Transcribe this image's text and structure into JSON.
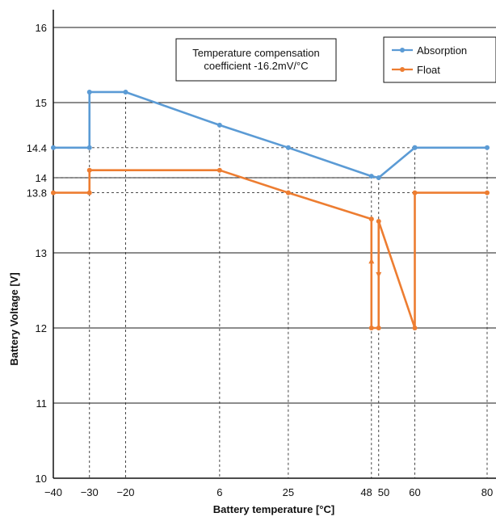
{
  "chart_data": {
    "type": "line",
    "xlabel": "Battery temperature [°C]",
    "ylabel": "Battery Voltage [V]",
    "xlim": [
      -40,
      80
    ],
    "ylim": [
      10,
      16
    ],
    "x_ticks": [
      -40,
      -30,
      -20,
      6,
      25,
      48,
      50,
      60,
      80
    ],
    "y_ticks": [
      10,
      11,
      12,
      13,
      13.8,
      14,
      14.4,
      15,
      16
    ],
    "grid": "horizontal lines at major y ticks; dashed guide lines at breakpoints",
    "legend_position": "top-right",
    "annotation": [
      "Temperature compensation",
      "coefficient -16.2mV/°C"
    ],
    "series": [
      {
        "name": "Absorption",
        "color": "#5b9bd5",
        "x": [
          -40,
          -30,
          -30,
          -20,
          6,
          25,
          48,
          50,
          60,
          60,
          80
        ],
        "y": [
          14.4,
          14.4,
          15.14,
          15.14,
          14.7,
          14.4,
          14.02,
          14.0,
          14.4,
          14.4,
          14.4
        ]
      },
      {
        "name": "Float",
        "color": "#ed7d31",
        "x": [
          -40,
          -30,
          -30,
          6,
          25,
          48,
          48,
          50,
          50,
          60,
          60,
          80
        ],
        "y": [
          13.8,
          13.8,
          14.1,
          14.1,
          13.8,
          13.45,
          12.0,
          12.0,
          13.42,
          12.0,
          13.8,
          13.8
        ]
      }
    ]
  }
}
